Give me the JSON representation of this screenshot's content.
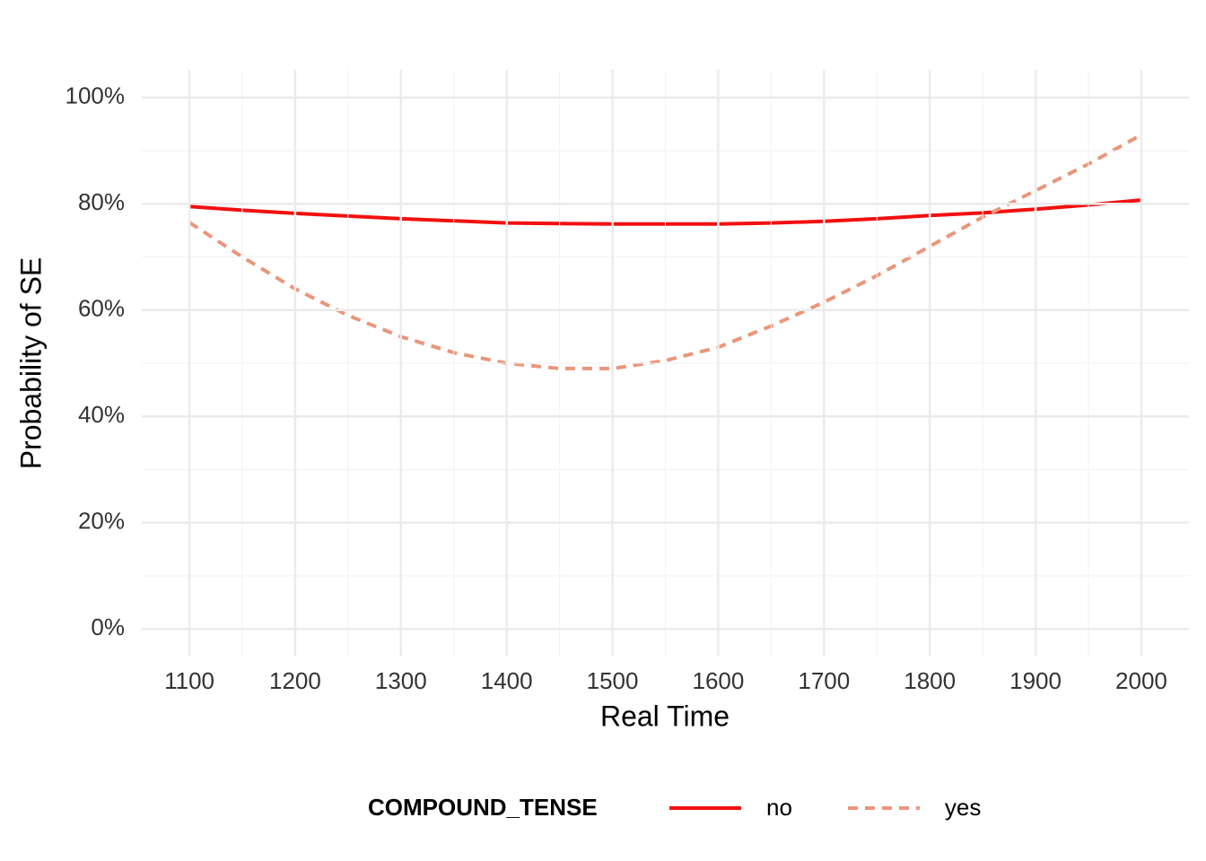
{
  "chart_data": {
    "type": "line",
    "x_label": "Real Time",
    "y_label": "Probability of SE",
    "legend_title": "COMPOUND_TENSE",
    "legend_position": "bottom",
    "grid": true,
    "x": [
      1100,
      1150,
      1200,
      1250,
      1300,
      1350,
      1400,
      1450,
      1500,
      1550,
      1600,
      1650,
      1700,
      1750,
      1800,
      1850,
      1900,
      1950,
      2000
    ],
    "series": [
      {
        "name": "no",
        "color": "#f21010",
        "dash": "solid",
        "values": [
          79.5,
          78.8,
          78.2,
          77.7,
          77.2,
          76.8,
          76.4,
          76.3,
          76.2,
          76.2,
          76.2,
          76.4,
          76.7,
          77.2,
          77.8,
          78.3,
          79.0,
          79.8,
          80.7
        ]
      },
      {
        "name": "yes",
        "color": "#e9967a",
        "dash": "dashed",
        "values": [
          76.5,
          70,
          64,
          59,
          55,
          52,
          50,
          49,
          49,
          50.5,
          53,
          57,
          61.5,
          66.5,
          72,
          77.5,
          82.5,
          87.5,
          93
        ]
      }
    ],
    "xlim": [
      1055,
      2045
    ],
    "xticks": [
      1100,
      1200,
      1300,
      1400,
      1500,
      1600,
      1700,
      1800,
      1900,
      2000
    ],
    "ylim": [
      -5.2,
      105.2
    ],
    "yticks": [
      {
        "value": 0,
        "label": "0%"
      },
      {
        "value": 20,
        "label": "20%"
      },
      {
        "value": 40,
        "label": "40%"
      },
      {
        "value": 60,
        "label": "60%"
      },
      {
        "value": 80,
        "label": "80%"
      },
      {
        "value": 100,
        "label": "100%"
      }
    ]
  }
}
